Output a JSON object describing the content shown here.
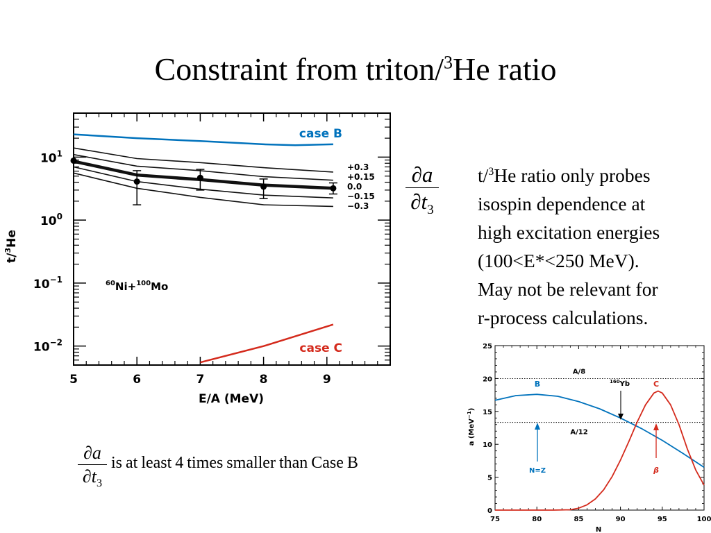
{
  "slide": {
    "title_main": "Constraint from triton/",
    "title_sup": "3",
    "title_tail": "He ratio",
    "note_lines": [
      [
        "t/",
        "3",
        "He ratio only probes"
      ],
      [
        "isospin dependence at"
      ],
      [
        "high excitation energies"
      ],
      [
        "(100<E*<250 MeV)."
      ],
      [
        "May not be relevant for"
      ],
      [
        "r-process calculations."
      ]
    ],
    "fraction": {
      "numerator": "∂a",
      "denominator": "∂t",
      "subscript": "3"
    },
    "bottom_text": "is at least 4 times smaller than Case B"
  },
  "chart_data": [
    {
      "type": "line",
      "xlabel": "E/A (MeV)",
      "ylabel_pre": "t/",
      "ylabel_sup": "3",
      "ylabel_post": "He",
      "xlim": [
        5,
        10
      ],
      "ylim": [
        0.005,
        50
      ],
      "yscale": "log",
      "x_ticks": [
        5,
        6,
        7,
        8,
        9
      ],
      "y_ticks": [
        {
          "value": 10,
          "base": "10",
          "exp": "1"
        },
        {
          "value": 1,
          "base": "10",
          "exp": "0"
        },
        {
          "value": 0.1,
          "base": "10",
          "exp": "−1"
        },
        {
          "value": 0.01,
          "base": "10",
          "exp": "−2"
        }
      ],
      "annotation": {
        "pre1": "60",
        "main1": "Ni+",
        "pre2": "100",
        "main2": "Mo"
      },
      "case_b": {
        "name": "case B",
        "color": "#0072bc",
        "x": [
          5,
          6,
          7,
          8,
          8.5,
          9.1
        ],
        "y": [
          23,
          20,
          18,
          16,
          15.5,
          16
        ]
      },
      "case_c": {
        "name": "case C",
        "color": "#d42a1c",
        "x": [
          7,
          8,
          9.1
        ],
        "y": [
          0.0055,
          0.01,
          0.022
        ]
      },
      "series": [
        {
          "name": "+0.3",
          "x": [
            5,
            6,
            7,
            8,
            9.1
          ],
          "y": [
            14,
            9.5,
            8.2,
            6.8,
            5.8
          ],
          "width": 1.6
        },
        {
          "name": "+0.15",
          "x": [
            5,
            6,
            7,
            8,
            9.1
          ],
          "y": [
            11,
            7.2,
            6.1,
            4.9,
            4.3
          ],
          "width": 1.6
        },
        {
          "name": "0.0",
          "x": [
            5,
            6,
            7,
            8,
            9.1
          ],
          "y": [
            8.6,
            5.2,
            4.4,
            3.6,
            3.2
          ],
          "width": 4.5
        },
        {
          "name": "−0.15",
          "x": [
            5,
            6,
            7,
            8,
            9.1
          ],
          "y": [
            7,
            4.1,
            3.1,
            2.5,
            2.25
          ],
          "width": 1.6
        },
        {
          "name": "−0.3",
          "x": [
            5,
            6,
            7,
            8,
            9.1
          ],
          "y": [
            5.6,
            3.2,
            2.3,
            1.75,
            1.65
          ],
          "width": 1.6
        }
      ],
      "data_points": [
        {
          "x": 5,
          "y": 8.8,
          "lo": 8.8,
          "hi": 8.8
        },
        {
          "x": 6,
          "y": 4.1,
          "lo": 1.75,
          "hi": 6.1
        },
        {
          "x": 7,
          "y": 4.7,
          "lo": 3.0,
          "hi": 6.4
        },
        {
          "x": 8,
          "y": 3.4,
          "lo": 2.2,
          "hi": 4.5
        },
        {
          "x": 9.1,
          "y": 3.2,
          "lo": 2.6,
          "hi": 3.9
        }
      ]
    },
    {
      "type": "line",
      "xlabel": "N",
      "ylabel": "a (MeV",
      "ylabel_sup": "−1",
      "ylabel_tail": ")",
      "xlim": [
        75,
        100
      ],
      "ylim": [
        0,
        25
      ],
      "x_ticks": [
        75,
        80,
        85,
        90,
        95,
        100
      ],
      "y_ticks": [
        0,
        5,
        10,
        15,
        20,
        25
      ],
      "hlines": [
        {
          "y": 20,
          "label": "A/8"
        },
        {
          "y": 13.33,
          "label": "A/12"
        }
      ],
      "series": [
        {
          "name": "B",
          "color": "#0072bc",
          "x": [
            75,
            77.5,
            80,
            82.5,
            85,
            87.5,
            90,
            92.5,
            95,
            97.5,
            100
          ],
          "y": [
            16.7,
            17.4,
            17.6,
            17.3,
            16.5,
            15.4,
            14.0,
            12.4,
            10.6,
            8.6,
            6.5
          ]
        },
        {
          "name": "C",
          "color": "#d42a1c",
          "x": [
            75,
            82,
            84,
            85,
            86,
            87,
            88,
            89,
            90,
            91,
            92,
            93,
            94,
            94.5,
            95,
            96,
            97,
            98,
            99,
            100
          ],
          "y": [
            0,
            0,
            0.05,
            0.3,
            0.8,
            1.7,
            3.1,
            5.1,
            7.6,
            10.4,
            13.4,
            16.0,
            17.8,
            18.1,
            17.8,
            16.0,
            13.0,
            9.3,
            6.1,
            3.8
          ]
        }
      ],
      "annotations": [
        {
          "label": "N=Z",
          "color": "#0072bc"
        },
        {
          "label": "β",
          "color": "#d42a1c"
        },
        {
          "pre": "160",
          "main": "Yb",
          "color": "#000000"
        }
      ]
    }
  ]
}
